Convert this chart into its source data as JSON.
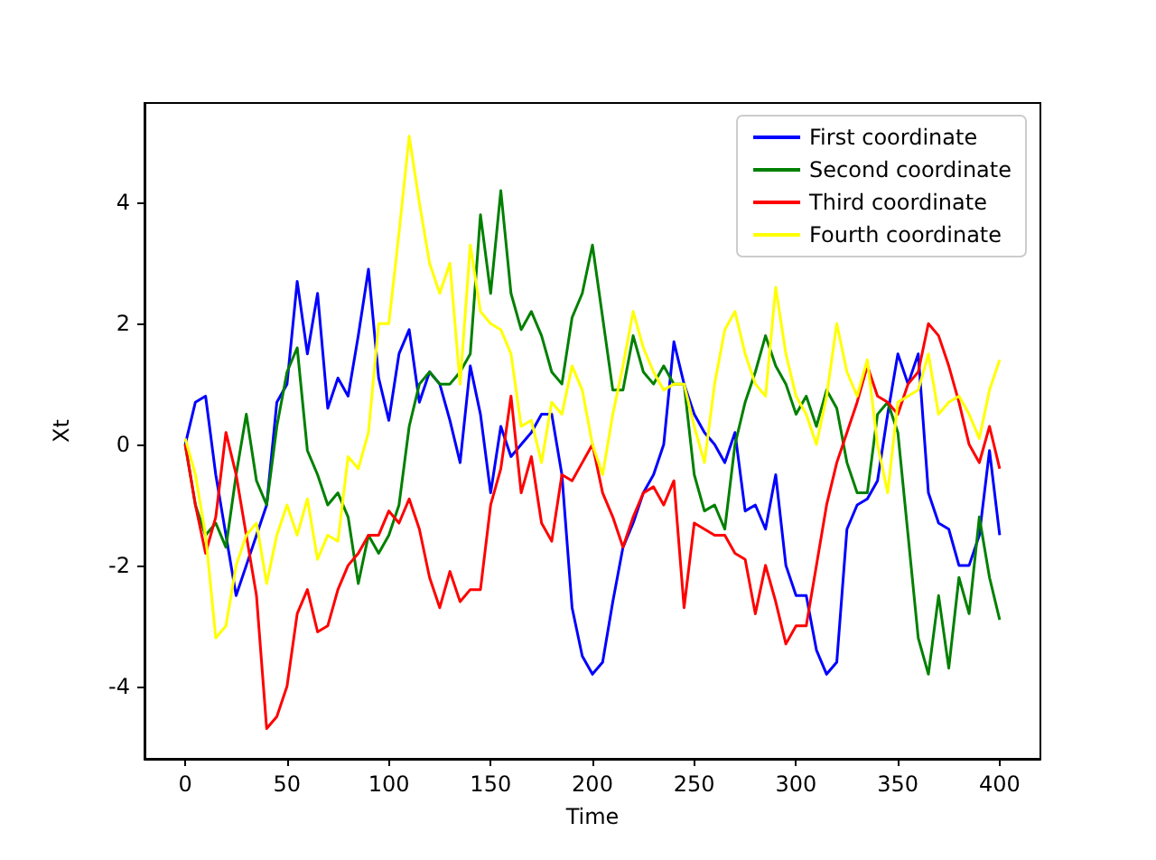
{
  "chart_data": {
    "type": "line",
    "xlabel": "Time",
    "ylabel": "Xt",
    "legend": "top right",
    "grid": false,
    "x": [
      0,
      5,
      10,
      15,
      20,
      25,
      30,
      35,
      40,
      45,
      50,
      55,
      60,
      65,
      70,
      75,
      80,
      85,
      90,
      95,
      100,
      105,
      110,
      115,
      120,
      125,
      130,
      135,
      140,
      145,
      150,
      155,
      160,
      165,
      170,
      175,
      180,
      185,
      190,
      195,
      200,
      205,
      210,
      215,
      220,
      225,
      230,
      235,
      240,
      245,
      250,
      255,
      260,
      265,
      270,
      275,
      280,
      285,
      290,
      295,
      300,
      305,
      310,
      315,
      320,
      325,
      330,
      335,
      340,
      345,
      350,
      355,
      360,
      365,
      370,
      375,
      380,
      385,
      390,
      395,
      400
    ],
    "xlim": [
      -20,
      420
    ],
    "xticks": [
      0,
      50,
      100,
      150,
      200,
      250,
      300,
      350,
      400
    ],
    "ylim": [
      -5.2,
      5.65
    ],
    "yticks": [
      -4,
      -2,
      0,
      2,
      4
    ],
    "series": [
      {
        "name": "First coordinate",
        "color": "#0000ff",
        "values": [
          0,
          0.7,
          0.8,
          -0.5,
          -1.5,
          -2.5,
          -2.0,
          -1.5,
          -1.0,
          0.7,
          1.0,
          2.7,
          1.5,
          2.5,
          0.6,
          1.1,
          0.8,
          1.8,
          2.9,
          1.1,
          0.4,
          1.5,
          1.9,
          0.7,
          1.2,
          1.0,
          0.4,
          -0.3,
          1.3,
          0.5,
          -0.8,
          0.3,
          -0.2,
          0.0,
          0.2,
          0.5,
          0.5,
          -0.5,
          -2.7,
          -3.5,
          -3.8,
          -3.6,
          -2.6,
          -1.7,
          -1.3,
          -0.8,
          -0.5,
          0.0,
          1.7,
          1.0,
          0.5,
          0.2,
          0.0,
          -0.3,
          0.2,
          -1.1,
          -1.0,
          -1.4,
          -0.5,
          -2.0,
          -2.5,
          -2.5,
          -3.4,
          -3.8,
          -3.6,
          -1.4,
          -1.0,
          -0.9,
          -0.6,
          0.5,
          1.5,
          1.0,
          1.5,
          -0.8,
          -1.3,
          -1.4,
          -2.0,
          -2.0,
          -1.5,
          -0.1,
          -1.5
        ]
      },
      {
        "name": "Second coordinate",
        "color": "#008000",
        "values": [
          0,
          -1.0,
          -1.5,
          -1.3,
          -1.7,
          -0.5,
          0.5,
          -0.6,
          -1.0,
          0.3,
          1.2,
          1.6,
          -0.1,
          -0.5,
          -1.0,
          -0.8,
          -1.2,
          -2.3,
          -1.5,
          -1.8,
          -1.5,
          -1.0,
          0.3,
          1.0,
          1.2,
          1.0,
          1.0,
          1.2,
          1.5,
          3.8,
          2.5,
          4.2,
          2.5,
          1.9,
          2.2,
          1.8,
          1.2,
          1.0,
          2.1,
          2.5,
          3.3,
          2.1,
          0.9,
          0.9,
          1.8,
          1.2,
          1.0,
          1.3,
          1.0,
          1.0,
          -0.5,
          -1.1,
          -1.0,
          -1.4,
          0.0,
          0.7,
          1.2,
          1.8,
          1.3,
          1.0,
          0.5,
          0.8,
          0.3,
          0.9,
          0.6,
          -0.3,
          -0.8,
          -0.8,
          0.5,
          0.7,
          0.2,
          -1.5,
          -3.2,
          -3.8,
          -2.5,
          -3.7,
          -2.2,
          -2.8,
          -1.2,
          -2.2,
          -2.9
        ]
      },
      {
        "name": "Third coordinate",
        "color": "#ff0000",
        "values": [
          0,
          -1.0,
          -1.8,
          -1.2,
          0.2,
          -0.5,
          -1.5,
          -2.5,
          -4.7,
          -4.5,
          -4.0,
          -2.8,
          -2.4,
          -3.1,
          -3.0,
          -2.4,
          -2.0,
          -1.8,
          -1.5,
          -1.5,
          -1.1,
          -1.3,
          -0.9,
          -1.4,
          -2.2,
          -2.7,
          -2.1,
          -2.6,
          -2.4,
          -2.4,
          -1.0,
          -0.4,
          0.8,
          -0.8,
          -0.2,
          -1.3,
          -1.6,
          -0.5,
          -0.6,
          -0.3,
          0.0,
          -0.8,
          -1.2,
          -1.7,
          -1.2,
          -0.8,
          -0.7,
          -1.0,
          -0.6,
          -2.7,
          -1.3,
          -1.4,
          -1.5,
          -1.5,
          -1.8,
          -1.9,
          -2.8,
          -2.0,
          -2.6,
          -3.3,
          -3.0,
          -3.0,
          -2.0,
          -1.0,
          -0.3,
          0.2,
          0.7,
          1.3,
          0.8,
          0.7,
          0.5,
          1.0,
          1.2,
          2.0,
          1.8,
          1.3,
          0.7,
          0.0,
          -0.3,
          0.3,
          -0.4
        ]
      },
      {
        "name": "Fourth coordinate",
        "color": "#ffff00",
        "values": [
          0.1,
          -0.5,
          -1.5,
          -3.2,
          -3.0,
          -2.0,
          -1.5,
          -1.3,
          -2.3,
          -1.5,
          -1.0,
          -1.5,
          -0.9,
          -1.9,
          -1.5,
          -1.6,
          -0.2,
          -0.4,
          0.2,
          2.0,
          2.0,
          3.5,
          5.1,
          4.0,
          3.0,
          2.5,
          3.0,
          1.0,
          3.3,
          2.2,
          2.0,
          1.9,
          1.5,
          0.3,
          0.4,
          -0.3,
          0.7,
          0.5,
          1.3,
          0.9,
          0.0,
          -0.5,
          0.5,
          1.3,
          2.2,
          1.6,
          1.2,
          0.9,
          1.0,
          1.0,
          0.3,
          -0.3,
          1.0,
          1.9,
          2.2,
          1.5,
          1.0,
          0.8,
          2.6,
          1.5,
          0.8,
          0.5,
          0.0,
          0.8,
          2.0,
          1.2,
          0.8,
          1.4,
          0.0,
          -0.8,
          0.7,
          0.8,
          0.9,
          1.5,
          0.5,
          0.7,
          0.8,
          0.5,
          0.1,
          0.9,
          1.4
        ]
      }
    ]
  }
}
